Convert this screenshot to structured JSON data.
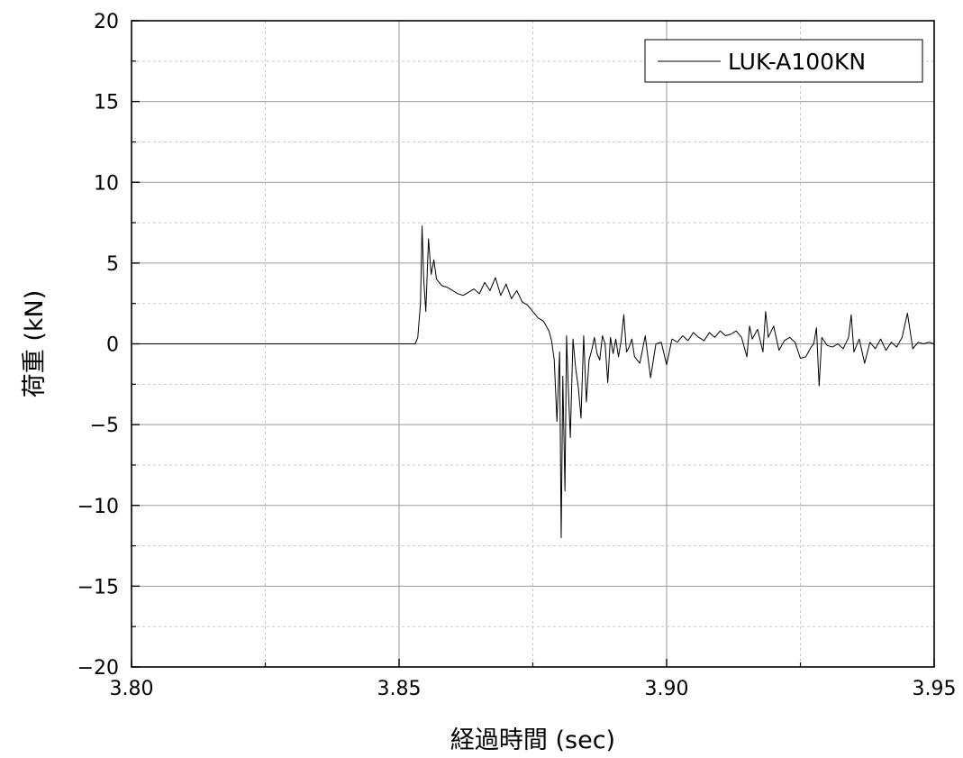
{
  "chart_data": {
    "type": "line",
    "title": "",
    "xlabel": "経過時間 (sec)",
    "ylabel": "荷重 (kN)",
    "xlim": [
      3.8,
      3.95
    ],
    "ylim": [
      -20,
      20
    ],
    "x_ticks": [
      3.8,
      3.85,
      3.9,
      3.95
    ],
    "x_tick_labels": [
      "3.80",
      "3.85",
      "3.90",
      "3.95"
    ],
    "x_minor_ticks": [
      3.825,
      3.875,
      3.925
    ],
    "y_ticks": [
      -20,
      -15,
      -10,
      -5,
      0,
      5,
      10,
      15,
      20
    ],
    "y_tick_labels": [
      "−20",
      "−15",
      "−10",
      "−5",
      "0",
      "5",
      "10",
      "15",
      "20"
    ],
    "y_minor_ticks": [
      -17.5,
      -12.5,
      -7.5,
      -2.5,
      2.5,
      7.5,
      12.5,
      17.5
    ],
    "grid": true,
    "legend_position": "top-right",
    "series": [
      {
        "name": "LUK-A100KN",
        "color": "#000000",
        "x": [
          3.8,
          3.805,
          3.81,
          3.815,
          3.82,
          3.825,
          3.83,
          3.835,
          3.84,
          3.845,
          3.85,
          3.853,
          3.8535,
          3.854,
          3.8543,
          3.8546,
          3.855,
          3.8555,
          3.856,
          3.8565,
          3.857,
          3.858,
          3.859,
          3.86,
          3.861,
          3.862,
          3.863,
          3.864,
          3.865,
          3.866,
          3.867,
          3.868,
          3.869,
          3.87,
          3.871,
          3.872,
          3.873,
          3.874,
          3.875,
          3.876,
          3.877,
          3.878,
          3.8785,
          3.879,
          3.8795,
          3.88,
          3.8803,
          3.8806,
          3.881,
          3.8813,
          3.8816,
          3.882,
          3.8825,
          3.883,
          3.8835,
          3.884,
          3.8845,
          3.885,
          3.8855,
          3.886,
          3.8865,
          3.887,
          3.8875,
          3.888,
          3.8885,
          3.889,
          3.8895,
          3.89,
          3.8905,
          3.891,
          3.8915,
          3.892,
          3.8925,
          3.893,
          3.8935,
          3.894,
          3.895,
          3.896,
          3.897,
          3.898,
          3.899,
          3.9,
          3.901,
          3.902,
          3.903,
          3.904,
          3.905,
          3.906,
          3.907,
          3.908,
          3.909,
          3.91,
          3.911,
          3.912,
          3.913,
          3.914,
          3.915,
          3.9155,
          3.916,
          3.917,
          3.918,
          3.9185,
          3.919,
          3.92,
          3.921,
          3.922,
          3.923,
          3.924,
          3.925,
          3.926,
          3.927,
          3.9275,
          3.928,
          3.9285,
          3.929,
          3.93,
          3.931,
          3.932,
          3.933,
          3.934,
          3.9345,
          3.935,
          3.936,
          3.937,
          3.938,
          3.939,
          3.94,
          3.941,
          3.942,
          3.943,
          3.944,
          3.945,
          3.946,
          3.947,
          3.948,
          3.949,
          3.95
        ],
        "y": [
          0,
          0,
          0,
          0,
          0,
          0,
          0,
          0,
          0,
          0,
          0,
          0,
          0.4,
          2.5,
          7.3,
          4.0,
          2.0,
          6.5,
          4.3,
          5.2,
          4.0,
          3.6,
          3.5,
          3.3,
          3.1,
          3.0,
          3.2,
          3.4,
          3.1,
          3.8,
          3.3,
          4.1,
          3.0,
          3.7,
          2.8,
          3.3,
          2.6,
          2.4,
          2.0,
          1.6,
          1.4,
          0.8,
          0.2,
          -1.0,
          -4.8,
          -0.5,
          -12.0,
          -2.0,
          -9.1,
          0.5,
          -2.5,
          -5.8,
          0.3,
          -1.5,
          -2.7,
          -4.6,
          0.5,
          -3.6,
          -1.0,
          -0.4,
          0.4,
          -0.6,
          -1.0,
          0.5,
          0.0,
          -2.4,
          0.4,
          -0.6,
          0.3,
          -0.8,
          0.2,
          1.8,
          -0.5,
          -0.2,
          0.3,
          -0.8,
          -1.2,
          0.5,
          -2.1,
          0.0,
          0.1,
          -1.3,
          0.3,
          0.1,
          0.5,
          0.2,
          0.7,
          0.4,
          0.2,
          0.7,
          0.4,
          0.8,
          0.5,
          0.6,
          0.8,
          0.4,
          -0.8,
          1.1,
          0.3,
          0.9,
          -0.5,
          2.0,
          0.4,
          1.1,
          -0.4,
          0.2,
          0.4,
          0.1,
          -0.9,
          -0.8,
          -0.2,
          0.0,
          1.0,
          -2.6,
          0.4,
          -0.1,
          -0.2,
          0.0,
          -0.3,
          0.4,
          1.8,
          -0.5,
          0.3,
          -1.2,
          0.1,
          -0.3,
          0.3,
          -0.4,
          0.1,
          -0.2,
          0.4,
          1.9,
          -0.3,
          0.1,
          0.0,
          0.1,
          0.0
        ]
      }
    ]
  }
}
